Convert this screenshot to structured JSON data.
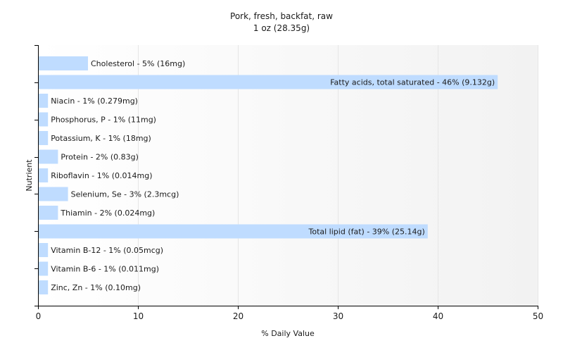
{
  "chart_data": {
    "type": "bar",
    "orientation": "horizontal",
    "title": "Pork, fresh, backfat, raw",
    "subtitle": "1 oz (28.35g)",
    "xlabel": "% Daily Value",
    "ylabel": "Nutrient",
    "xlim": [
      0,
      50
    ],
    "xticks": [
      0,
      10,
      20,
      30,
      40,
      50
    ],
    "grid": "vertical",
    "categories": [
      "Cholesterol",
      "Fatty acids, total saturated",
      "Niacin",
      "Phosphorus, P",
      "Potassium, K",
      "Protein",
      "Riboflavin",
      "Selenium, Se",
      "Thiamin",
      "Total lipid (fat)",
      "Vitamin B-12",
      "Vitamin B-6",
      "Zinc, Zn"
    ],
    "values": [
      5,
      46,
      1,
      1,
      1,
      2,
      1,
      3,
      2,
      39,
      1,
      1,
      1
    ],
    "labels": [
      "Cholesterol - 5% (16mg)",
      "Fatty acids, total saturated - 46% (9.132g)",
      "Niacin - 1% (0.279mg)",
      "Phosphorus, P - 1% (11mg)",
      "Potassium, K - 1% (18mg)",
      "Protein - 2% (0.83g)",
      "Riboflavin - 1% (0.014mg)",
      "Selenium, Se - 3% (2.3mcg)",
      "Thiamin - 2% (0.024mg)",
      "Total lipid (fat) - 39% (25.14g)",
      "Vitamin B-12 - 1% (0.05mcg)",
      "Vitamin B-6 - 1% (0.011mg)",
      "Zinc, Zn - 1% (0.10mg)"
    ],
    "colors": {
      "bar": "#bfdcff",
      "axis": "#000000",
      "grid": "#e6e6e6",
      "text": "#1a1a1a"
    }
  }
}
